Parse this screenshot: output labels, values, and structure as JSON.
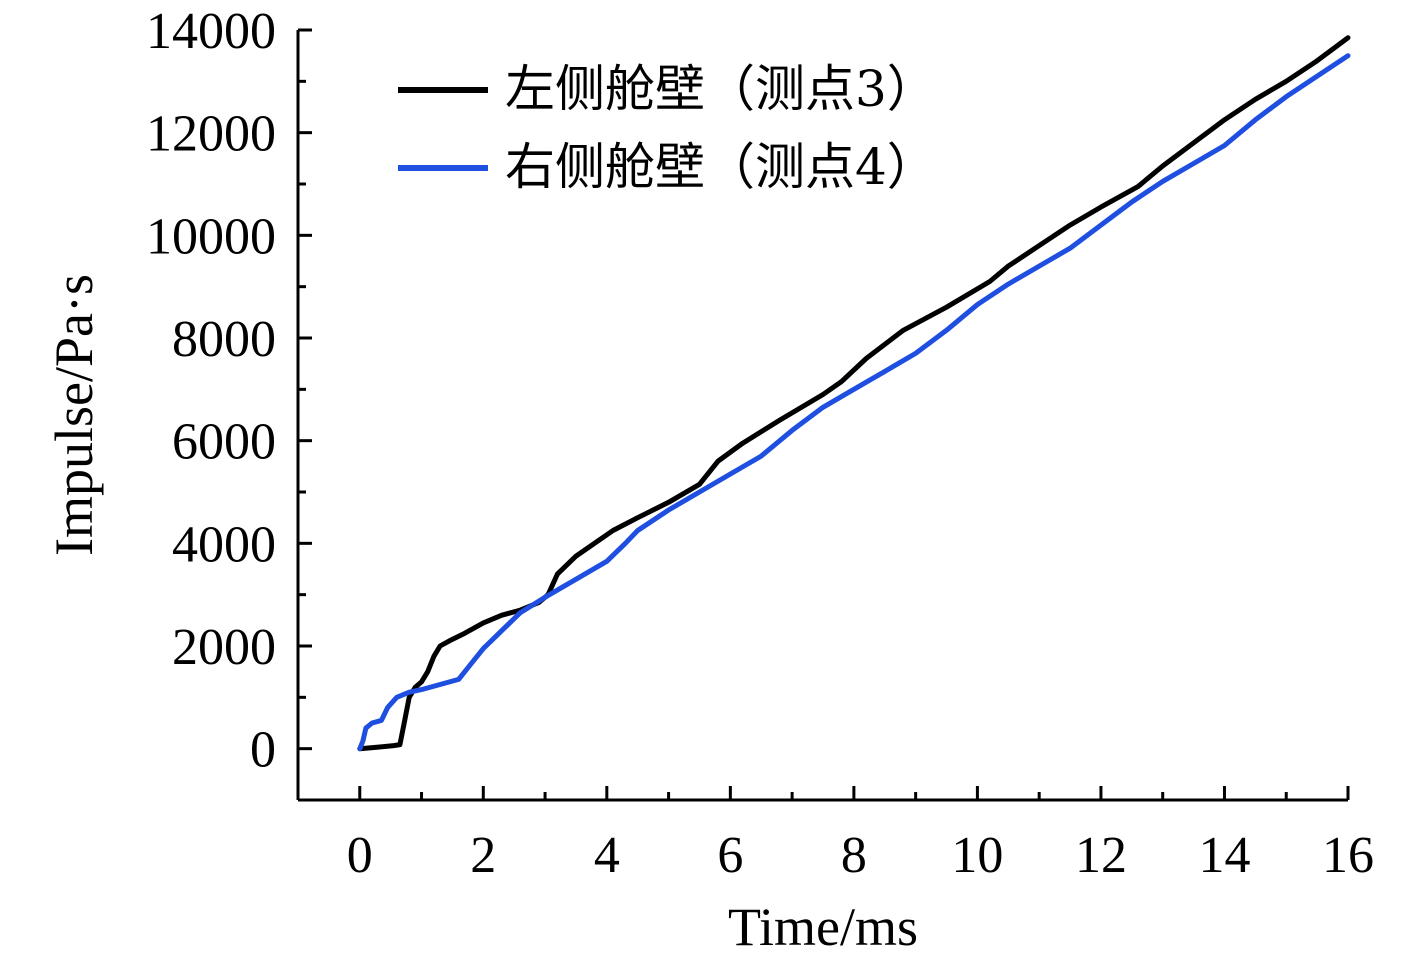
{
  "chart_data": {
    "type": "line",
    "xlabel": "Time/ms",
    "ylabel": "Impulse/Pa·s",
    "xlim": [
      -1,
      16
    ],
    "ylim": [
      -1000,
      14000
    ],
    "xticks": [
      0,
      2,
      4,
      6,
      8,
      10,
      12,
      14,
      16
    ],
    "yticks": [
      0,
      2000,
      4000,
      6000,
      8000,
      10000,
      12000,
      14000
    ],
    "legend_position": "top-left",
    "grid": false,
    "series": [
      {
        "name": "左侧舱壁（测点3）",
        "color": "#000000",
        "x": [
          0,
          0.3,
          0.55,
          0.65,
          0.72,
          0.8,
          0.9,
          1.0,
          1.1,
          1.2,
          1.3,
          1.45,
          1.7,
          2.0,
          2.3,
          2.6,
          2.9,
          3.05,
          3.2,
          3.5,
          3.8,
          4.1,
          4.5,
          5.0,
          5.5,
          5.8,
          6.2,
          6.8,
          7.5,
          7.8,
          8.2,
          8.8,
          9.5,
          10.2,
          10.5,
          11.0,
          11.5,
          12.0,
          12.6,
          13.0,
          13.5,
          14.0,
          14.5,
          15.0,
          15.5,
          16.0
        ],
        "values": [
          0,
          30,
          60,
          80,
          500,
          1000,
          1200,
          1300,
          1500,
          1800,
          2000,
          2100,
          2250,
          2450,
          2600,
          2700,
          2850,
          3000,
          3400,
          3750,
          4000,
          4250,
          4500,
          4800,
          5150,
          5600,
          5950,
          6400,
          6900,
          7150,
          7600,
          8150,
          8600,
          9100,
          9400,
          9800,
          10200,
          10550,
          10950,
          11350,
          11800,
          12250,
          12650,
          13000,
          13400,
          13850
        ]
      },
      {
        "name": "右侧舱壁（测点4）",
        "color": "#1f4fe0",
        "x": [
          0,
          0.05,
          0.1,
          0.2,
          0.35,
          0.45,
          0.6,
          0.8,
          1.0,
          1.3,
          1.6,
          1.8,
          2.0,
          2.3,
          2.6,
          3.0,
          3.5,
          4.0,
          4.3,
          4.5,
          5.0,
          5.5,
          6.0,
          6.5,
          7.0,
          7.5,
          8.0,
          8.5,
          9.0,
          9.5,
          10.0,
          10.5,
          11.0,
          11.5,
          12.0,
          12.5,
          13.0,
          13.5,
          14.0,
          14.5,
          15.0,
          15.5,
          16.0
        ],
        "values": [
          0,
          150,
          400,
          500,
          550,
          800,
          1000,
          1100,
          1150,
          1250,
          1350,
          1650,
          1950,
          2300,
          2650,
          2950,
          3300,
          3650,
          4000,
          4250,
          4650,
          5000,
          5350,
          5700,
          6200,
          6650,
          7000,
          7350,
          7700,
          8150,
          8650,
          9050,
          9400,
          9750,
          10200,
          10650,
          11050,
          11400,
          11750,
          12250,
          12700,
          13100,
          13500
        ]
      }
    ]
  }
}
